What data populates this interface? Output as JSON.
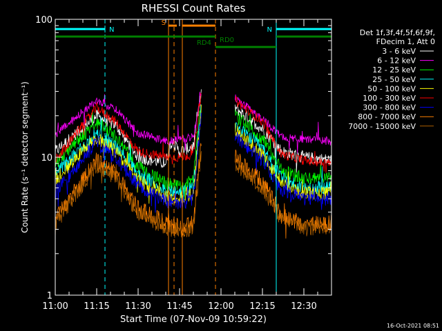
{
  "chart_data": {
    "type": "line",
    "title": "RHESSI Count Rates",
    "xlabel": "Start Time (07-Nov-09 10:59:22)",
    "ylabel": "Count Rate (s⁻¹ detector segment⁻¹)",
    "x_unit": "minutes after 11:00",
    "xlim": [
      0,
      100
    ],
    "ylim": [
      1,
      100
    ],
    "yscale": "log",
    "x_ticks": [
      {
        "x": 0,
        "label": "11:00"
      },
      {
        "x": 15,
        "label": "11:15"
      },
      {
        "x": 30,
        "label": "11:30"
      },
      {
        "x": 45,
        "label": "11:45"
      },
      {
        "x": 60,
        "label": "12:00"
      },
      {
        "x": 75,
        "label": "12:15"
      },
      {
        "x": 90,
        "label": "12:30"
      }
    ],
    "y_ticks": [
      {
        "y": 1,
        "label": "1"
      },
      {
        "y": 10,
        "label": "10"
      },
      {
        "y": 100,
        "label": "100"
      }
    ],
    "legend": {
      "placement": "right",
      "header": [
        "Det 1f,3f,4f,5f,6f,9f,",
        "FDecim 1, Att 0"
      ]
    },
    "series": [
      {
        "name": "3 - 6 keV",
        "color": "#ffffff",
        "offset": 0.43,
        "noise": 0.045,
        "points": [
          [
            0,
            11
          ],
          [
            15,
            20
          ],
          [
            22,
            17
          ],
          [
            30,
            10
          ],
          [
            40,
            9
          ],
          [
            42,
            13
          ],
          [
            45,
            11
          ],
          [
            50,
            12
          ],
          [
            53,
            30
          ],
          [
            58,
            null
          ],
          [
            65,
            23
          ],
          [
            75,
            16
          ],
          [
            82,
            11
          ],
          [
            90,
            10
          ],
          [
            100,
            9.5
          ]
        ]
      },
      {
        "name": "6 - 12 keV",
        "color": "#ff00ff",
        "offset": 0.05,
        "noise": 0.03,
        "points": [
          [
            0,
            14.5
          ],
          [
            15,
            26
          ],
          [
            22,
            22
          ],
          [
            30,
            15
          ],
          [
            40,
            13
          ],
          [
            45,
            13.5
          ],
          [
            50,
            14
          ],
          [
            53,
            30
          ],
          [
            58,
            null
          ],
          [
            65,
            27
          ],
          [
            75,
            19
          ],
          [
            82,
            14
          ],
          [
            90,
            13.5
          ],
          [
            100,
            13
          ]
        ]
      },
      {
        "name": "12 - 25 keV",
        "color": "#00ff00",
        "offset": 0.29,
        "noise": 0.05,
        "points": [
          [
            0,
            9
          ],
          [
            15,
            18
          ],
          [
            22,
            14
          ],
          [
            30,
            8.5
          ],
          [
            40,
            6.5
          ],
          [
            45,
            6
          ],
          [
            50,
            7
          ],
          [
            53,
            28
          ],
          [
            58,
            null
          ],
          [
            65,
            20
          ],
          [
            75,
            13.5
          ],
          [
            82,
            8
          ],
          [
            90,
            7
          ],
          [
            100,
            7
          ]
        ]
      },
      {
        "name": "25 - 50 keV",
        "color": "#00ffff",
        "offset": 0.31,
        "noise": 0.05,
        "points": [
          [
            0,
            7.5
          ],
          [
            15,
            15
          ],
          [
            22,
            12
          ],
          [
            30,
            7.5
          ],
          [
            40,
            5.8
          ],
          [
            45,
            5.5
          ],
          [
            50,
            6
          ],
          [
            53,
            26
          ],
          [
            58,
            null
          ],
          [
            65,
            17
          ],
          [
            75,
            11.5
          ],
          [
            82,
            7
          ],
          [
            90,
            6
          ],
          [
            100,
            6
          ]
        ]
      },
      {
        "name": "50 - 100 keV",
        "color": "#ffff00",
        "offset": 0.27,
        "noise": 0.05,
        "points": [
          [
            0,
            6.8
          ],
          [
            15,
            14
          ],
          [
            22,
            11
          ],
          [
            30,
            6.8
          ],
          [
            40,
            5.2
          ],
          [
            45,
            5
          ],
          [
            50,
            5.5
          ],
          [
            53,
            24
          ],
          [
            58,
            null
          ],
          [
            65,
            16
          ],
          [
            75,
            10.5
          ],
          [
            82,
            6.5
          ],
          [
            90,
            5.5
          ],
          [
            100,
            5.5
          ]
        ]
      },
      {
        "name": "100 - 300 keV",
        "color": "#ff0000",
        "offset": 0.63,
        "noise": 0.035,
        "points": [
          [
            0,
            9.5
          ],
          [
            15,
            23
          ],
          [
            22,
            18
          ],
          [
            30,
            11
          ],
          [
            40,
            10
          ],
          [
            45,
            10
          ],
          [
            50,
            10.5
          ],
          [
            53,
            30
          ],
          [
            58,
            null
          ],
          [
            65,
            26
          ],
          [
            75,
            18
          ],
          [
            82,
            10.5
          ],
          [
            90,
            9.5
          ],
          [
            100,
            9
          ]
        ]
      },
      {
        "name": "300 - 800 keV",
        "color": "#0000ff",
        "offset": 0.24,
        "noise": 0.05,
        "points": [
          [
            0,
            5.5
          ],
          [
            15,
            13
          ],
          [
            22,
            10
          ],
          [
            30,
            6.2
          ],
          [
            40,
            4.8
          ],
          [
            45,
            4.6
          ],
          [
            50,
            5
          ],
          [
            53,
            22
          ],
          [
            58,
            null
          ],
          [
            65,
            14.5
          ],
          [
            75,
            9.5
          ],
          [
            82,
            5.8
          ],
          [
            90,
            5
          ],
          [
            100,
            5
          ]
        ]
      },
      {
        "name": "800 - 7000 keV",
        "color": "#ff8000",
        "offset": 0.04,
        "noise": 0.065,
        "points": [
          [
            0,
            3.6
          ],
          [
            15,
            9.5
          ],
          [
            22,
            7.5
          ],
          [
            30,
            4.2
          ],
          [
            40,
            3.3
          ],
          [
            45,
            3.1
          ],
          [
            50,
            3.3
          ],
          [
            53,
            14
          ],
          [
            58,
            null
          ],
          [
            65,
            10
          ],
          [
            75,
            6.5
          ],
          [
            82,
            3.8
          ],
          [
            90,
            3.3
          ],
          [
            100,
            3.3
          ]
        ]
      },
      {
        "name": "7000 - 15000 keV",
        "color": "#b06000",
        "offset": 0.64,
        "noise": 0.06,
        "points": [
          [
            0,
            3.3
          ],
          [
            15,
            8.8
          ],
          [
            22,
            7
          ],
          [
            30,
            3.9
          ],
          [
            40,
            3.1
          ],
          [
            45,
            2.9
          ],
          [
            50,
            3.1
          ],
          [
            53,
            12
          ],
          [
            58,
            null
          ],
          [
            65,
            9.2
          ],
          [
            75,
            6
          ],
          [
            82,
            3.5
          ],
          [
            90,
            3.1
          ],
          [
            100,
            3.1
          ]
        ]
      }
    ],
    "gaps": [
      {
        "name": "data gap",
        "x": [
          55,
          62
        ]
      }
    ],
    "annotations": [
      {
        "label": "N",
        "color": "#00ffff",
        "kind": "night",
        "x": [
          -100,
          18
        ],
        "y_level": 85,
        "dashed_x": 18,
        "bars": true
      },
      {
        "label": "N",
        "color": "#00ffff",
        "kind": "night",
        "x": [
          80,
          100
        ],
        "y_level": 85,
        "dashed_x": 100,
        "solid_x": 80,
        "bars": true
      },
      {
        "label": "S",
        "color": "#ff8000",
        "kind": "saa",
        "x": [
          41,
          44
        ],
        "y_level": 90,
        "dashed_x": 43,
        "solid_x": 41
      },
      {
        "label": "",
        "color": "#ff8000",
        "kind": "saa",
        "x": [
          46,
          58
        ],
        "y_level": 90,
        "dashed_x": 58,
        "solid_x": 46
      },
      {
        "label": "RD4",
        "color": "#008000",
        "kind": "rd",
        "x": [
          -100,
          58
        ],
        "y_level": 75
      },
      {
        "label": "RD0",
        "color": "#008000",
        "kind": "rd",
        "x": [
          58,
          80
        ],
        "y_level": 63
      },
      {
        "label": "",
        "color": "#008000",
        "kind": "rd",
        "x": [
          80,
          100
        ],
        "y_level": 75
      }
    ],
    "timestamp": "16-Oct-2021 08:51"
  }
}
